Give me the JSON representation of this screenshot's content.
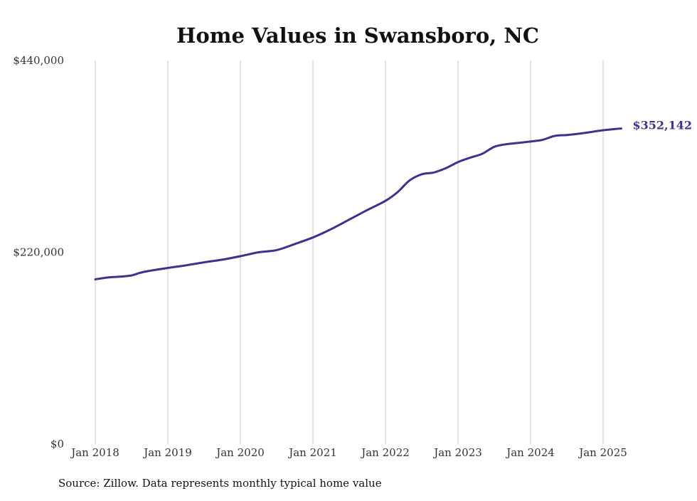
{
  "colors": {
    "line": "#3a3491",
    "grid": "#c8c8c8",
    "text": "#333333",
    "title": "#111111"
  },
  "chart_data": {
    "type": "line",
    "title": "Home Values in Swansboro, NC",
    "xlabel": "",
    "ylabel": "",
    "ylim": [
      0,
      440000
    ],
    "y_ticks": [
      0,
      220000,
      440000
    ],
    "y_tick_labels": [
      "$0",
      "$220,000",
      "$440,000"
    ],
    "x_ticks": [
      "2018-01",
      "2019-01",
      "2020-01",
      "2021-01",
      "2022-01",
      "2023-01",
      "2024-01",
      "2025-01"
    ],
    "x_tick_labels": [
      "Jan 2018",
      "Jan 2019",
      "Jan 2020",
      "Jan 2021",
      "Jan 2022",
      "Jan 2023",
      "Jan 2024",
      "Jan 2025"
    ],
    "grid": {
      "vertical": true,
      "horizontal": false
    },
    "end_label": "$352,142",
    "series": [
      {
        "x": [
          "2018-01",
          "2018-03",
          "2018-05",
          "2018-07",
          "2018-09",
          "2019-01",
          "2019-04",
          "2019-07",
          "2019-10",
          "2020-01",
          "2020-04",
          "2020-07",
          "2020-10",
          "2021-01",
          "2021-04",
          "2021-07",
          "2021-10",
          "2022-01",
          "2022-03",
          "2022-05",
          "2022-07",
          "2022-09",
          "2022-11",
          "2023-01",
          "2023-03",
          "2023-05",
          "2023-07",
          "2023-09",
          "2023-11",
          "2024-01",
          "2024-03",
          "2024-05",
          "2024-07",
          "2024-09",
          "2024-11",
          "2025-01",
          "2025-03",
          "2025-04"
        ],
        "values": [
          189000,
          191000,
          192000,
          193500,
          197500,
          202000,
          205000,
          208500,
          211500,
          215500,
          220000,
          222500,
          229500,
          237000,
          246500,
          257500,
          268500,
          279000,
          289000,
          302500,
          309500,
          311500,
          316500,
          323500,
          328500,
          333000,
          341000,
          344000,
          345500,
          347000,
          349000,
          353500,
          354500,
          356000,
          358000,
          360000,
          361500,
          362000
        ]
      }
    ]
  },
  "source_note": "Source: Zillow. Data represents monthly typical home value"
}
